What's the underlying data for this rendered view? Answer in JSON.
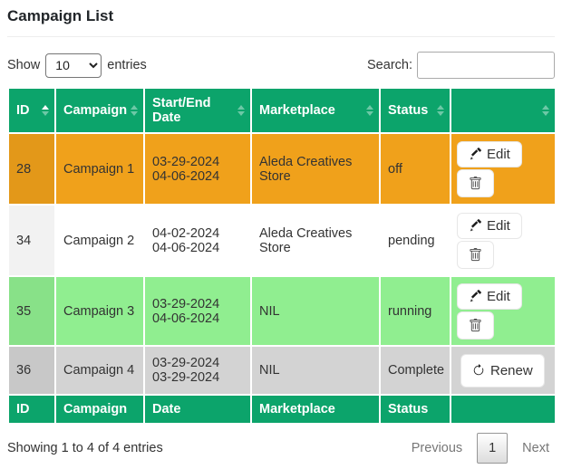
{
  "page": {
    "title": "Campaign List"
  },
  "controls": {
    "show_label": "Show",
    "page_length": "10",
    "entries_label": "entries",
    "search_label": "Search:",
    "search_value": ""
  },
  "colors": {
    "header_green": "#0ca46b",
    "row_orange": "#f0a11b",
    "row_white": "#ffffff",
    "row_light_green": "#90ee90",
    "row_gray": "#d3d3d3"
  },
  "table": {
    "headers": [
      {
        "label": "ID",
        "sort": "asc"
      },
      {
        "label": "Campaign",
        "sort": "none"
      },
      {
        "label": "Start/End Date",
        "sort": "none"
      },
      {
        "label": "Marketplace",
        "sort": "none"
      },
      {
        "label": "Status",
        "sort": "none"
      },
      {
        "label": "",
        "sort": "none"
      }
    ],
    "footers": [
      "ID",
      "Campaign",
      "Date",
      "Marketplace",
      "Status",
      ""
    ],
    "action_labels": {
      "edit": "Edit",
      "renew": "Renew"
    },
    "rows": [
      {
        "id": "28",
        "campaign": "Campaign 1",
        "start_date": "03-29-2024",
        "end_date": "04-06-2024",
        "marketplace": "Aleda Creatives Store",
        "status": "off",
        "row_color": "#f0a11b",
        "actions": [
          "edit",
          "delete"
        ]
      },
      {
        "id": "34",
        "campaign": "Campaign 2",
        "start_date": "04-02-2024",
        "end_date": "04-06-2024",
        "marketplace": "Aleda Creatives Store",
        "status": "pending",
        "row_color": "#ffffff",
        "actions": [
          "edit",
          "delete"
        ]
      },
      {
        "id": "35",
        "campaign": "Campaign 3",
        "start_date": "03-29-2024",
        "end_date": "04-06-2024",
        "marketplace": "NIL",
        "status": "running",
        "row_color": "#90ee90",
        "actions": [
          "edit",
          "delete"
        ]
      },
      {
        "id": "36",
        "campaign": "Campaign 4",
        "start_date": "03-29-2024",
        "end_date": "03-29-2024",
        "marketplace": "NIL",
        "status": "Complete",
        "row_color": "#d3d3d3",
        "actions": [
          "renew"
        ]
      }
    ]
  },
  "footer": {
    "info": "Showing 1 to 4 of 4 entries",
    "pagination": {
      "previous": "Previous",
      "current": "1",
      "next": "Next"
    }
  }
}
